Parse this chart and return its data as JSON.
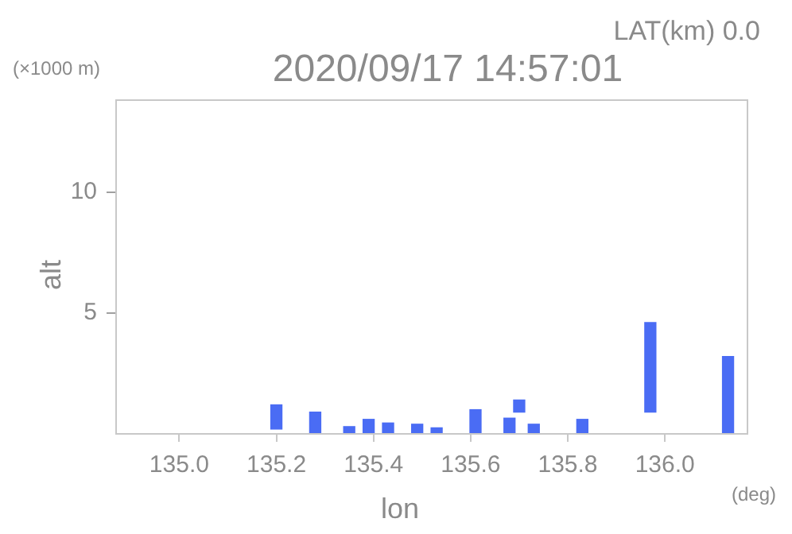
{
  "chart_data": {
    "type": "bar",
    "title": "2020/09/17 14:57:01",
    "subtitle": "LAT(km) 0.0",
    "xlabel": "lon",
    "ylabel": "alt",
    "annotations": [
      "(×1000 m)",
      "(deg)"
    ],
    "x": [
      135.2,
      135.28,
      135.35,
      135.39,
      135.43,
      135.49,
      135.53,
      135.61,
      135.68,
      135.7,
      135.73,
      135.83,
      135.97,
      136.13
    ],
    "base": [
      0.2,
      0,
      0,
      0,
      0,
      0,
      0,
      0,
      0,
      0.9,
      0,
      0,
      0.9,
      0
    ],
    "values": [
      1.0,
      0.9,
      0.3,
      0.6,
      0.45,
      0.4,
      0.25,
      1.0,
      0.65,
      0.5,
      0.4,
      0.6,
      3.7,
      3.2
    ],
    "color": "#4a6cf4",
    "xlim": [
      134.87,
      136.17
    ],
    "xticks": [
      {
        "value": 135,
        "label": "135.0"
      },
      {
        "value": 135.2,
        "label": "135.2"
      },
      {
        "value": 135.4,
        "label": "135.4"
      },
      {
        "value": 135.6,
        "label": "135.6"
      },
      {
        "value": 135.8,
        "label": "135.8"
      },
      {
        "value": 136,
        "label": "136.0"
      }
    ],
    "ylim": [
      0,
      13.8
    ],
    "yticks": [
      5,
      10
    ],
    "grid": false,
    "legend": false
  }
}
